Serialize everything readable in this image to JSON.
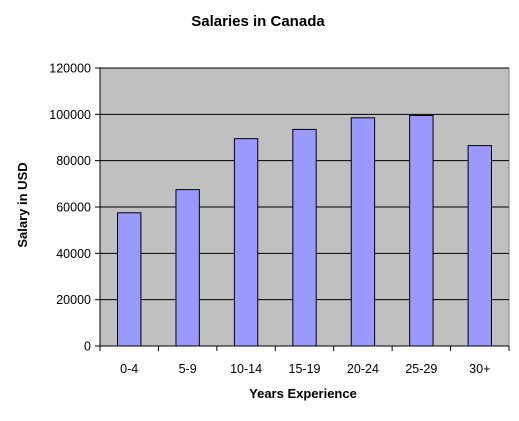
{
  "chart_data": {
    "type": "bar",
    "title": "Salaries in Canada",
    "xlabel": "Years Experience",
    "ylabel": "Salary in USD",
    "categories": [
      "0-4",
      "5-9",
      "10-14",
      "15-19",
      "20-24",
      "25-29",
      "30+"
    ],
    "values": [
      57500,
      67500,
      89500,
      93500,
      98500,
      99500,
      86500
    ],
    "ylim": [
      0,
      120000
    ],
    "yticks": [
      "0",
      "20000",
      "40000",
      "60000",
      "80000",
      "100000",
      "120000"
    ],
    "grid": true,
    "legend": "none",
    "colors": {
      "bar_fill": "#9999ff",
      "bar_stroke": "#000000",
      "plot_background": "#c0c0c0",
      "gridline": "#000000"
    }
  }
}
